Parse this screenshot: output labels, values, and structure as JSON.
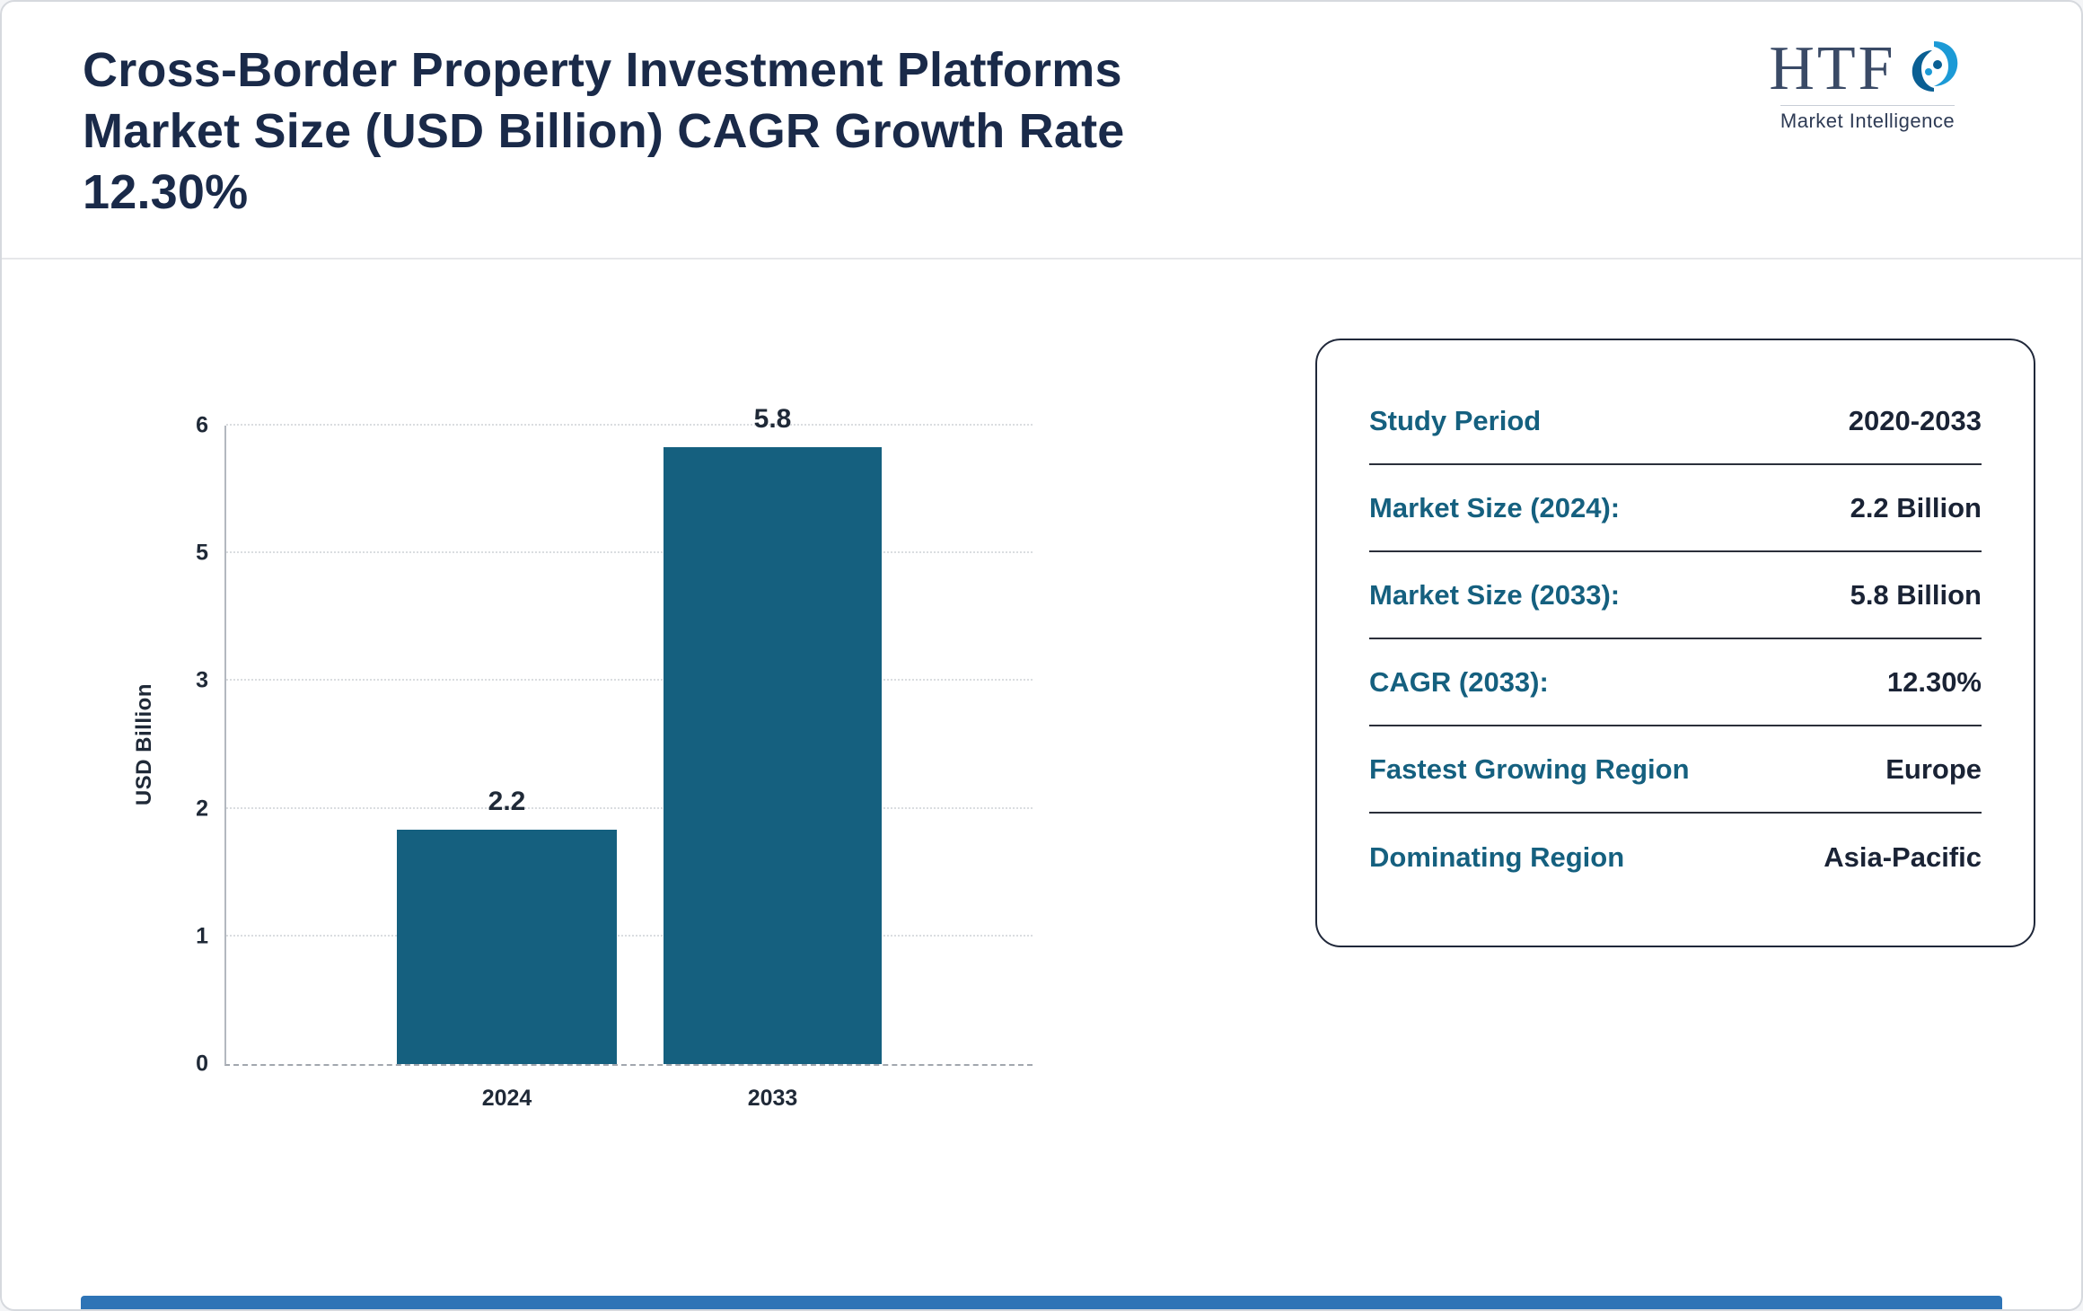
{
  "header": {
    "title_lines": [
      "Cross-Border Property Investment Platforms",
      "Market Size (USD Billion) CAGR Growth Rate",
      "12.30%"
    ]
  },
  "logo": {
    "text": "HTF",
    "subtext": "Market Intelligence",
    "swoosh_icon": "blue-swirl"
  },
  "chart_data": {
    "type": "bar",
    "title": "Cross-Border Property Investment Platforms Market Size (USD Billion) CAGR Growth Rate 12.30%",
    "categories": [
      "2024",
      "2033"
    ],
    "values": [
      2.2,
      5.8
    ],
    "value_labels": [
      "2.2",
      "5.8"
    ],
    "xlabel": "",
    "ylabel": "USD Billion",
    "ylim": [
      0,
      6
    ],
    "ytick_labels_bottom_to_top": [
      "0",
      "1",
      "2",
      "3",
      "5",
      "6"
    ],
    "grid": "horizontal-dotted",
    "legend": "none",
    "bar_color": "#15607f"
  },
  "summary_table": {
    "rows": [
      {
        "label": "Study Period",
        "value": "2020-2033"
      },
      {
        "label": "Market Size (2024):",
        "value": "2.2 Billion"
      },
      {
        "label": "Market Size (2033):",
        "value": "5.8 Billion"
      },
      {
        "label": "CAGR (2033):",
        "value": "12.30%"
      },
      {
        "label": "Fastest Growing Region",
        "value": "Europe"
      },
      {
        "label": "Dominating Region",
        "value": "Asia-Pacific"
      }
    ]
  },
  "colors": {
    "accent_teal": "#15607f",
    "title_navy": "#1a2a49",
    "bottom_bar_blue": "#2e74b6"
  }
}
